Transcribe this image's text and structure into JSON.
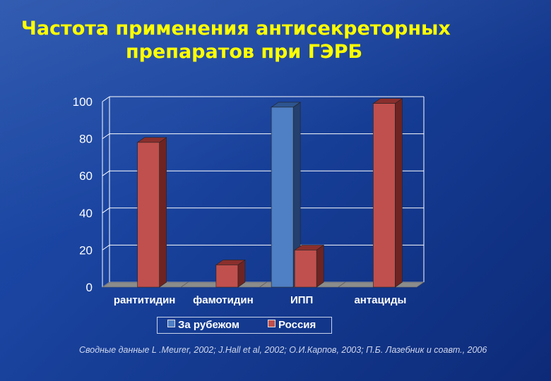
{
  "title": {
    "line1": "Частота применения антисекреторных",
    "line2": "препаратов при ГЭРБ"
  },
  "source": "Сводные данные L .Meurer, 2002; J.Hall et al, 2002; О.И.Карпов, 2003; П.Б. Лазебник и соавт., 2006",
  "colors": {
    "abroad": "#4f7fc4",
    "russia": "#c0504d",
    "title": "#ffff00"
  },
  "chart_data": {
    "type": "bar",
    "style": "3d-clustered",
    "categories": [
      "рантитидин",
      "фамотидин",
      "ИПП",
      "антациды"
    ],
    "series": [
      {
        "name": "За рубежом",
        "values": [
          0,
          0,
          97,
          0
        ]
      },
      {
        "name": "Россия",
        "values": [
          78,
          12,
          20,
          99
        ]
      }
    ],
    "ylim": [
      0,
      100
    ],
    "yticks": [
      "0",
      "20",
      "40",
      "60",
      "80",
      "100"
    ],
    "grid": true,
    "legend_position": "bottom"
  }
}
